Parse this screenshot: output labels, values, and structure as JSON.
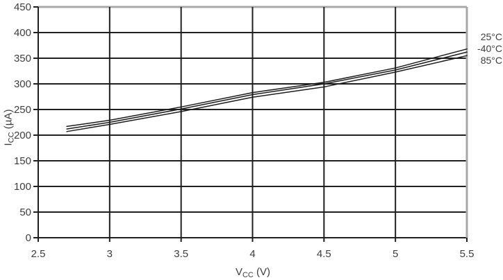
{
  "chart_data": {
    "type": "line",
    "x": [
      2.7,
      3.0,
      3.5,
      4.0,
      4.5,
      5.0,
      5.5
    ],
    "series": [
      {
        "name": "25°C",
        "values": [
          217,
          229,
          255,
          283,
          303,
          331,
          368
        ]
      },
      {
        "name": "-40°C",
        "values": [
          212,
          225,
          251,
          279,
          300,
          327,
          362
        ]
      },
      {
        "name": "85°C",
        "values": [
          207,
          221,
          246,
          274,
          294,
          323,
          355
        ]
      }
    ],
    "title": "",
    "xlabel": "VCC (V)",
    "ylabel": "ICC (µA)",
    "xlim": [
      2.5,
      5.5
    ],
    "ylim": [
      0,
      450
    ],
    "xticks": [
      2.5,
      3,
      3.5,
      4,
      4.5,
      5,
      5.5
    ],
    "xtick_labels": [
      "2.5",
      "3",
      "3.5",
      "4",
      "4.5",
      "5",
      "5.5"
    ],
    "yticks": [
      0,
      50,
      100,
      150,
      200,
      250,
      300,
      350,
      400,
      450
    ],
    "ytick_labels": [
      "0",
      "50",
      "100",
      "150",
      "200",
      "250",
      "300",
      "350",
      "400",
      "450"
    ],
    "grid": true,
    "legend_position": "right-outside",
    "grid_color": "#1f1f1f",
    "frame_color": "#a8a8a8",
    "line_color": "#1c1c1c",
    "text_color": "#3d3d3d",
    "background_color": "#ffffff"
  },
  "axes": {
    "x_label": {
      "pre": "V",
      "sub": "CC",
      "post": "(V)"
    },
    "y_label": {
      "pre": "I",
      "sub": "CC",
      "post": "(µA)"
    }
  }
}
